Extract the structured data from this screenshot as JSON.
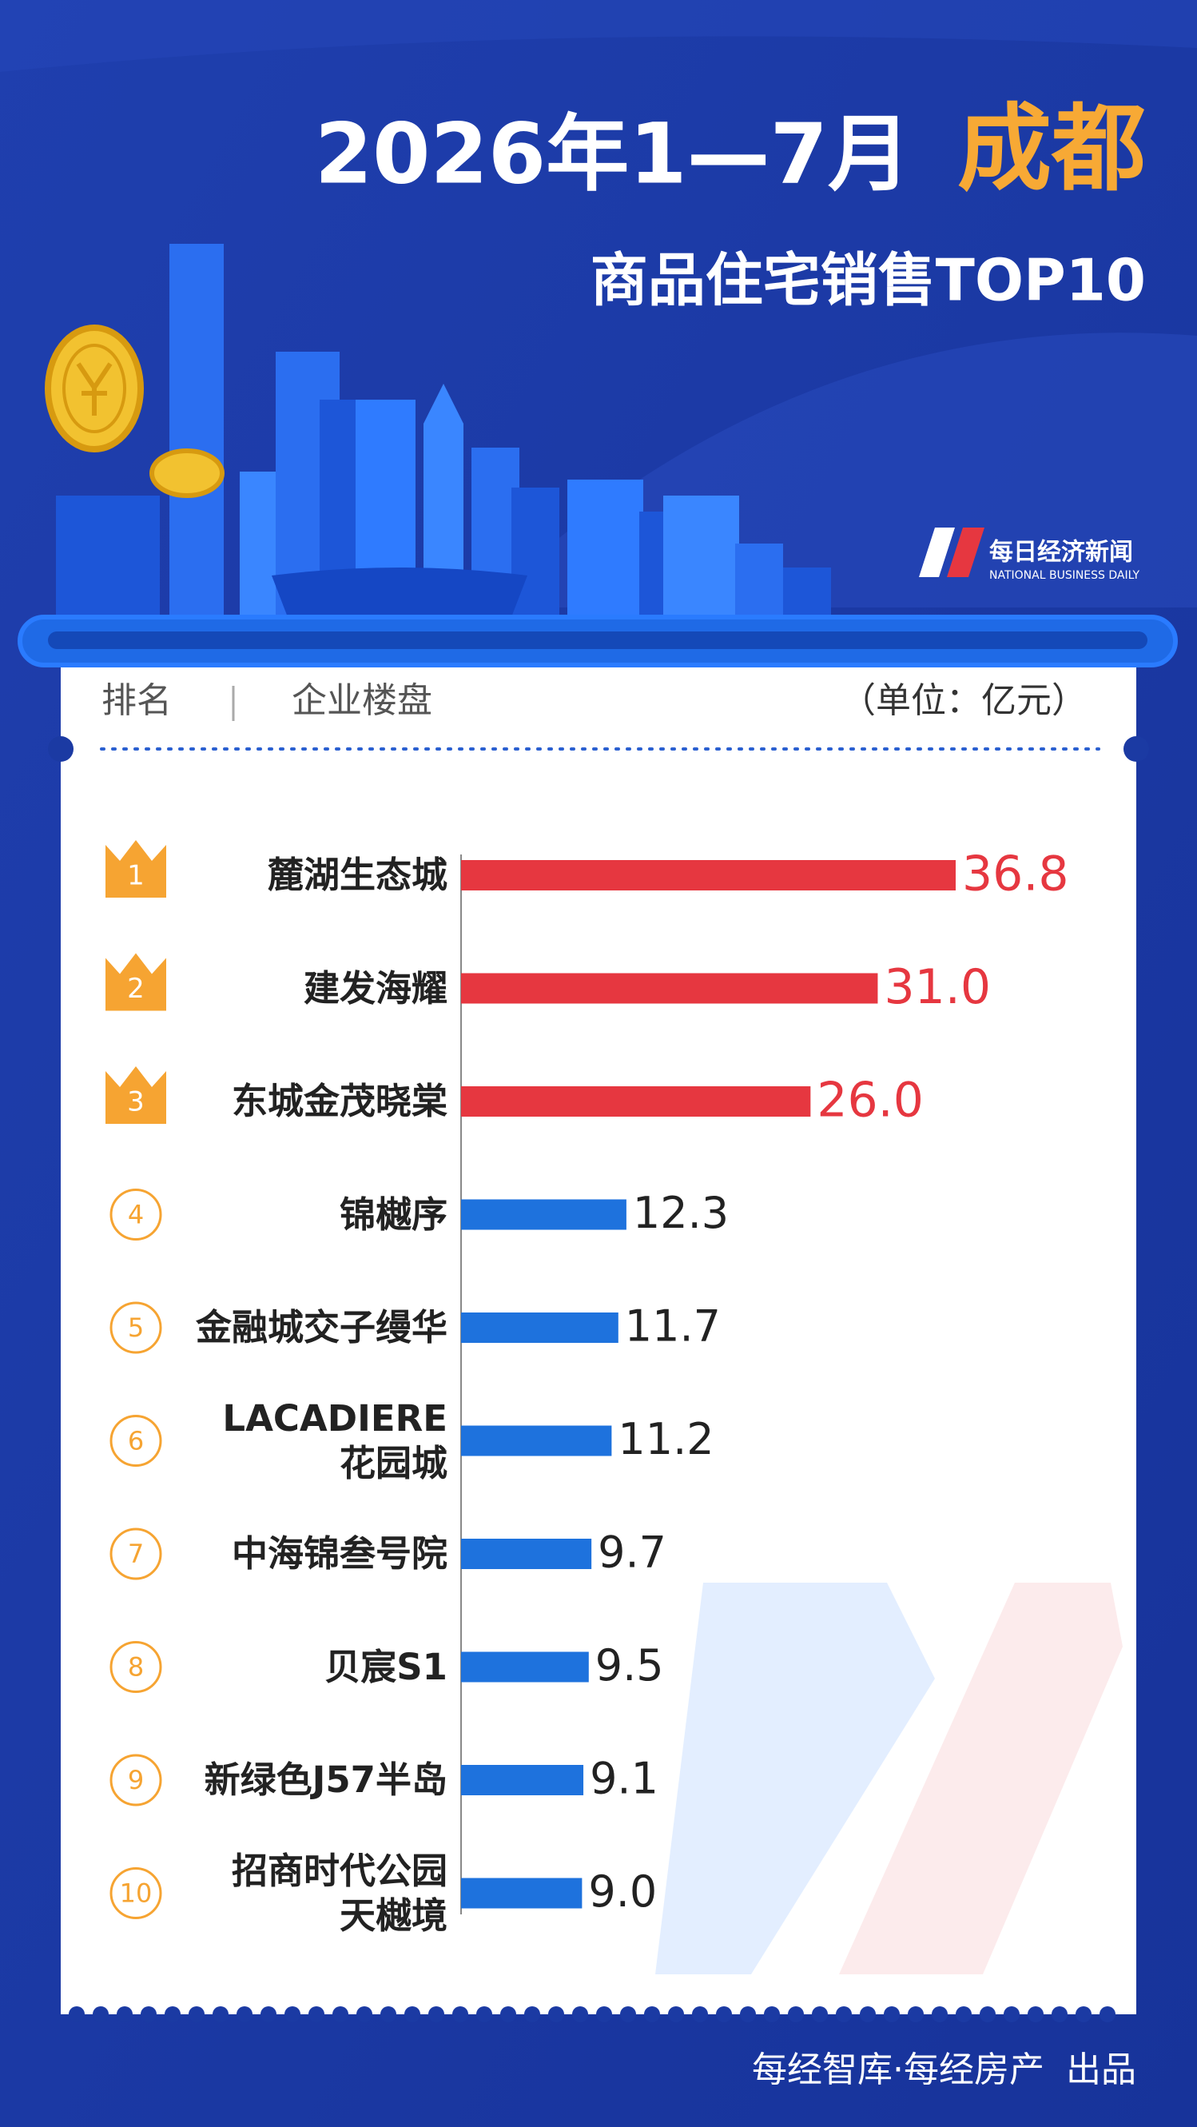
{
  "chart_data": {
    "type": "bar",
    "title": "2026年1—7月",
    "title_city": "成都",
    "subtitle": "商品住宅销售TOP10",
    "logo": {
      "name": "每日经济新闻",
      "subtitle": "NATIONAL BUSINESS DAILY"
    },
    "header": {
      "rank": "排名",
      "project": "企业楼盘",
      "unit": "（单位：亿元）"
    },
    "ranks": [
      "1",
      "2",
      "3",
      "4",
      "5",
      "6",
      "7",
      "8",
      "9",
      "10"
    ],
    "categories": [
      "麓湖生态城",
      "建发海耀",
      "东城金茂晓棠",
      "锦樾序",
      "金融城交子缦华",
      "LACADIERE\n花园城",
      "中海锦叁号院",
      "贝宸S1",
      "新绿色J57半岛",
      "招商时代公园\n天樾境"
    ],
    "values": [
      36.8,
      31.0,
      26.0,
      12.3,
      11.7,
      11.2,
      9.7,
      9.5,
      9.1,
      9.0
    ],
    "value_labels": [
      "36.8",
      "31.0",
      "26.0",
      "12.3",
      "11.7",
      "11.2",
      "9.7",
      "9.5",
      "9.1",
      "9.0"
    ],
    "colors": [
      "#e63740",
      "#e63740",
      "#e63740",
      "#1e72dd",
      "#1e72dd",
      "#1e72dd",
      "#1e72dd",
      "#1e72dd",
      "#1e72dd",
      "#1e72dd"
    ],
    "source": "每经智库·每经房产",
    "source_suffix": "出品"
  }
}
